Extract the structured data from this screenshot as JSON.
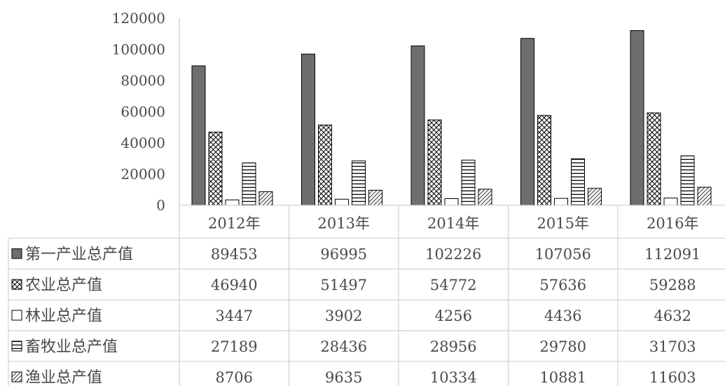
{
  "chart_data": {
    "type": "bar",
    "categories": [
      "2012年",
      "2013年",
      "2014年",
      "2015年",
      "2016年"
    ],
    "series": [
      {
        "name": "第一产业总产值",
        "values": [
          89453,
          96995,
          102226,
          107056,
          112091
        ],
        "pattern": "solid",
        "color": "#6e6e6e"
      },
      {
        "name": "农业总产值",
        "values": [
          46940,
          51497,
          54772,
          57636,
          59288
        ],
        "pattern": "crosshatch",
        "color": "#000000"
      },
      {
        "name": "林业总产值",
        "values": [
          3447,
          3902,
          4256,
          4436,
          4632
        ],
        "pattern": "none",
        "color": "#000000"
      },
      {
        "name": "畜牧业总产值",
        "values": [
          27189,
          28436,
          28956,
          29780,
          31703
        ],
        "pattern": "horizontal-lines",
        "color": "#000000"
      },
      {
        "name": "渔业总产值",
        "values": [
          8706,
          9635,
          10334,
          10881,
          11603
        ],
        "pattern": "diagonal-lines",
        "color": "#000000"
      }
    ],
    "yticks": [
      "0",
      "20000",
      "40000",
      "60000",
      "80000",
      "100000",
      "120000"
    ],
    "ylim": [
      0,
      120000
    ],
    "grid": false,
    "legend": "data-table-left"
  }
}
